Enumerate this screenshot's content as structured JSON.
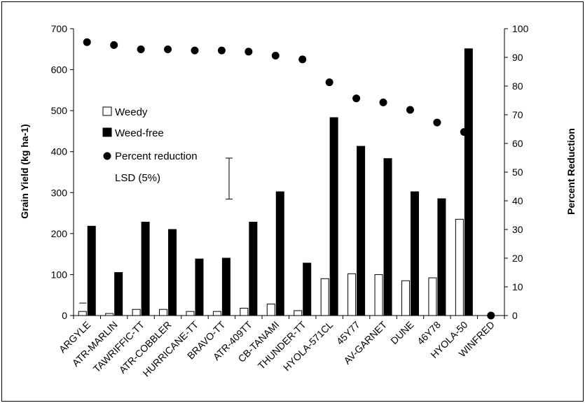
{
  "chart_data": {
    "type": "bar",
    "title": "",
    "categories": [
      "ARGYLE",
      "ATR-MARLIN",
      "TAWRIFFIC-TT",
      "ATR-COBBLER",
      "HURRICANE-TT",
      "BRAVO-TT",
      "ATR-409TT",
      "CB-TANAMI",
      "THUNDER-TT",
      "HYOLA-571CL",
      "45Y77",
      "AV-GARNET",
      "DUNE",
      "46Y78",
      "HYOLA-50",
      "WINFRED"
    ],
    "series": [
      {
        "name": "Weedy",
        "type": "bar",
        "axis": "left",
        "color": "#ffffff",
        "values": [
          10,
          5,
          15,
          15,
          10,
          10,
          18,
          28,
          12,
          90,
          102,
          100,
          85,
          92,
          235,
          0
        ]
      },
      {
        "name": "Weed-free",
        "type": "bar",
        "axis": "left",
        "color": "#000000",
        "values": [
          218,
          105,
          228,
          210,
          138,
          140,
          228,
          302,
          128,
          483,
          413,
          383,
          302,
          285,
          651,
          0
        ]
      },
      {
        "name": "Percent reduction",
        "type": "scatter",
        "axis": "right",
        "color": "#000000",
        "values": [
          95.3,
          94.3,
          92.8,
          92.8,
          92.4,
          92.4,
          92.0,
          90.6,
          89.3,
          81.3,
          75.7,
          74.3,
          71.7,
          67.3,
          64.0,
          0
        ]
      }
    ],
    "lsd": {
      "label": "LSD (5%)",
      "value": 100
    },
    "ylabel": "Grain Yield (kg ha-1)",
    "y2label": "Percent Reduction",
    "ylim": [
      0,
      700
    ],
    "y2lim": [
      0,
      100
    ],
    "yticks": [
      "0",
      "100",
      "200",
      "300",
      "400",
      "500",
      "600",
      "700"
    ],
    "y2ticks": [
      "0",
      "10",
      "20",
      "30",
      "40",
      "50",
      "60",
      "70",
      "80",
      "90",
      "100"
    ],
    "legend_position": "upper-left",
    "grid": false
  }
}
